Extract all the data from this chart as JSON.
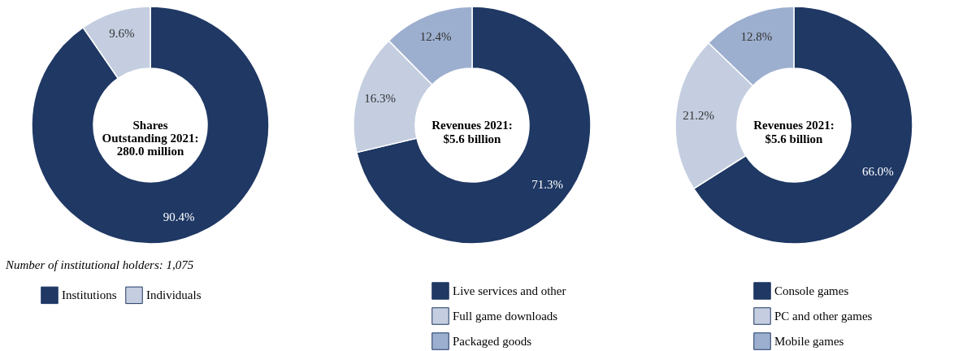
{
  "chart_data": [
    {
      "type": "donut",
      "title": "Shares\nOutstanding 2021:\n280.0 million",
      "categories": [
        "Institutions",
        "Individuals"
      ],
      "values": [
        90.4,
        9.6
      ],
      "colors": [
        "#1f3864",
        "#c4cee0"
      ],
      "value_labels": [
        "90.4%",
        "9.6%"
      ],
      "annotations": [
        "Number of institutional holders: 1,075"
      ],
      "legend": "bottom"
    },
    {
      "type": "donut",
      "title": "Revenues 2021:\n$5.6 billion",
      "categories": [
        "Live services and other",
        "Full game downloads",
        "Packaged goods"
      ],
      "values": [
        71.3,
        16.3,
        12.4
      ],
      "colors": [
        "#1f3864",
        "#c4cee0",
        "#9dafcf"
      ],
      "value_labels": [
        "71.3%",
        "16.3%",
        "12.4%"
      ],
      "legend": "bottom"
    },
    {
      "type": "donut",
      "title": "Revenues 2021:\n$5.6 billion",
      "categories": [
        "Console games",
        "PC and other games",
        "Mobile games"
      ],
      "values": [
        66.0,
        21.2,
        12.8
      ],
      "colors": [
        "#1f3864",
        "#c4cee0",
        "#9dafcf"
      ],
      "value_labels": [
        "66.0%",
        "21.2%",
        "12.8%"
      ],
      "legend": "bottom"
    }
  ]
}
